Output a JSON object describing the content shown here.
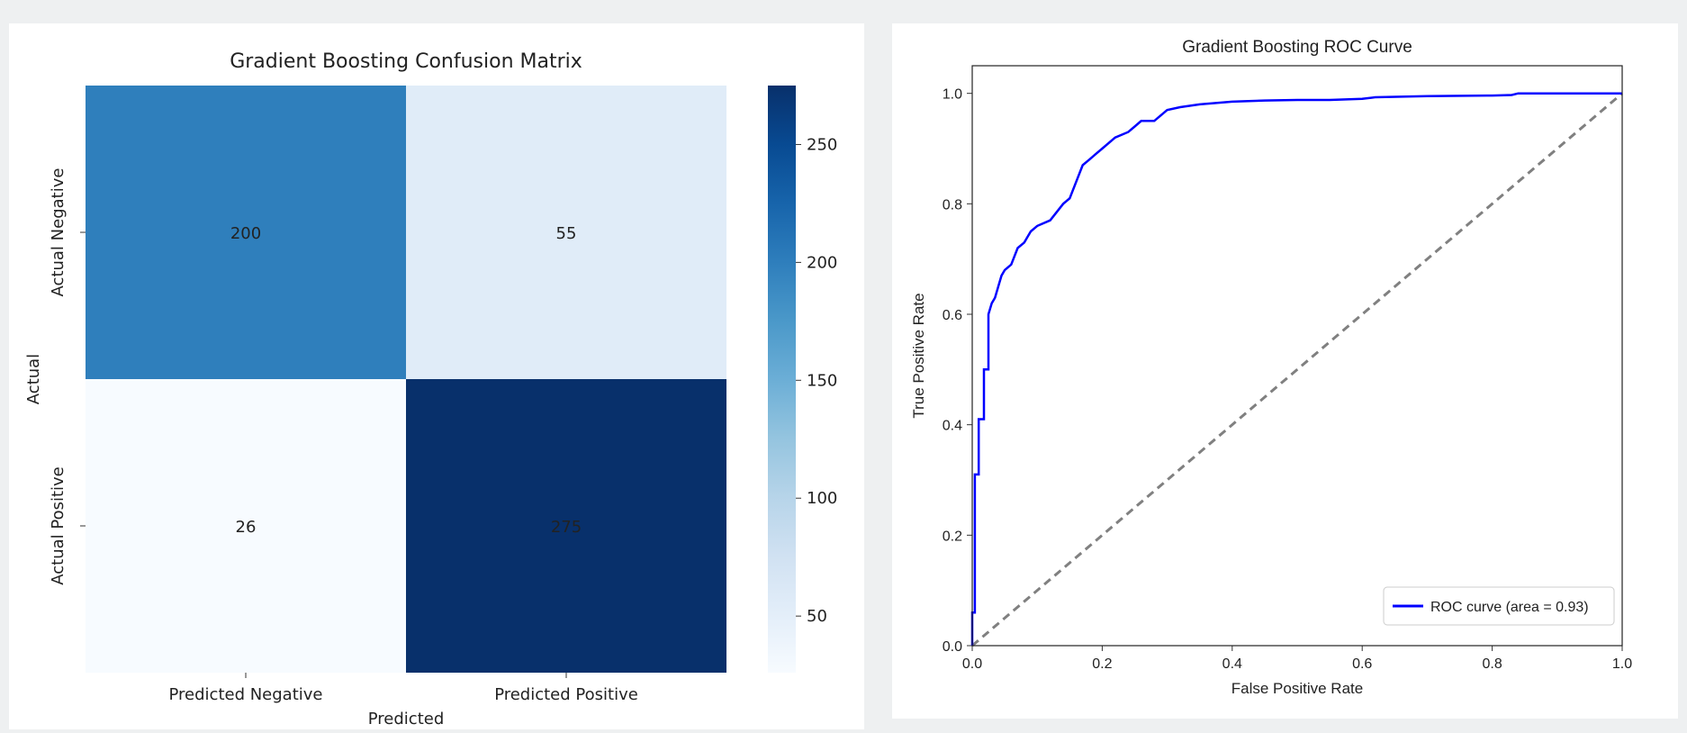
{
  "chart_data": [
    {
      "type": "heatmap",
      "title": "Gradient Boosting Confusion Matrix",
      "xlabel": "Predicted",
      "ylabel": "Actual",
      "x_categories": [
        "Predicted Negative",
        "Predicted Positive"
      ],
      "y_categories": [
        "Actual Negative",
        "Actual Positive"
      ],
      "values": [
        [
          200,
          55
        ],
        [
          26,
          275
        ]
      ],
      "cell_labels": [
        "200",
        "55",
        "26",
        "275"
      ],
      "colormap": "Blues",
      "color_range": [
        26,
        275
      ],
      "colorbar_ticks": [
        "50",
        "100",
        "150",
        "200",
        "250"
      ],
      "colorbar_tick_values": [
        50,
        100,
        150,
        200,
        250
      ]
    },
    {
      "type": "line",
      "title": "Gradient Boosting ROC Curve",
      "xlabel": "False Positive Rate",
      "ylabel": "True Positive Rate",
      "xlim": [
        0.0,
        1.0
      ],
      "ylim": [
        0.0,
        1.05
      ],
      "x_ticks": [
        "0.0",
        "0.2",
        "0.4",
        "0.6",
        "0.8",
        "1.0"
      ],
      "y_ticks": [
        "0.0",
        "0.2",
        "0.4",
        "0.6",
        "0.8",
        "1.0"
      ],
      "legend_position": "lower right",
      "series": [
        {
          "name": "ROC curve (area = 0.93)",
          "color": "#0000ff",
          "style": "solid",
          "x": [
            0.0,
            0.0,
            0.004,
            0.004,
            0.01,
            0.01,
            0.018,
            0.018,
            0.025,
            0.025,
            0.03,
            0.035,
            0.04,
            0.045,
            0.05,
            0.06,
            0.07,
            0.08,
            0.09,
            0.1,
            0.12,
            0.14,
            0.15,
            0.16,
            0.17,
            0.18,
            0.19,
            0.2,
            0.22,
            0.24,
            0.25,
            0.26,
            0.28,
            0.3,
            0.32,
            0.35,
            0.4,
            0.45,
            0.5,
            0.55,
            0.6,
            0.62,
            0.7,
            0.8,
            0.83,
            0.84,
            0.9,
            1.0
          ],
          "y": [
            0.0,
            0.06,
            0.06,
            0.31,
            0.31,
            0.41,
            0.41,
            0.5,
            0.5,
            0.6,
            0.62,
            0.63,
            0.65,
            0.67,
            0.68,
            0.69,
            0.72,
            0.73,
            0.75,
            0.76,
            0.77,
            0.8,
            0.81,
            0.84,
            0.87,
            0.88,
            0.89,
            0.9,
            0.92,
            0.93,
            0.94,
            0.95,
            0.95,
            0.97,
            0.975,
            0.98,
            0.985,
            0.987,
            0.988,
            0.988,
            0.99,
            0.993,
            0.995,
            0.996,
            0.997,
            1.0,
            1.0,
            1.0
          ]
        },
        {
          "name": "",
          "color": "#808080",
          "style": "dashed",
          "x": [
            0.0,
            1.0
          ],
          "y": [
            0.0,
            1.0
          ]
        }
      ]
    }
  ]
}
